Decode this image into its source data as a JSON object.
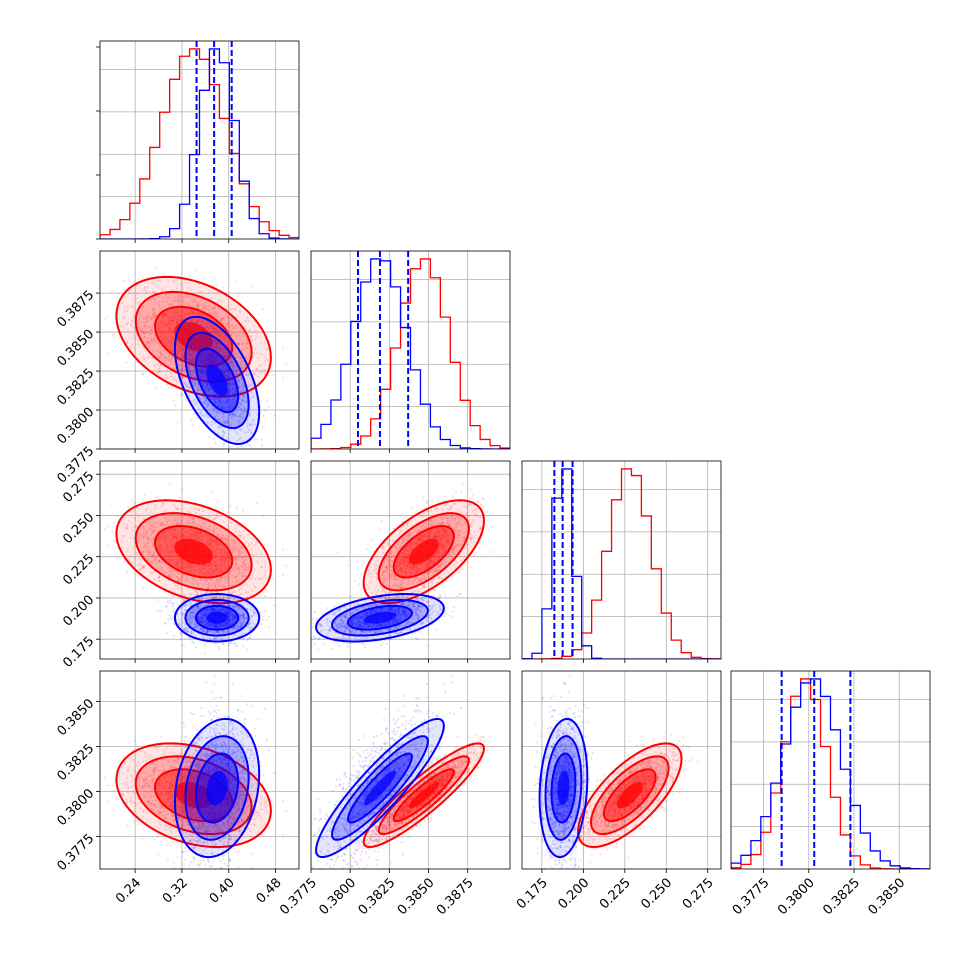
{
  "colors": {
    "red": "#ff0000",
    "blue": "#0000ff",
    "grid": "#b0b0b0",
    "frame": "#000000"
  },
  "chart_data": {
    "type": "corner",
    "grid": true,
    "series": [
      {
        "color": "#ff0000",
        "mean": [
          0.34,
          0.3847,
          0.228,
          0.3798
        ],
        "sd": [
          0.055,
          0.0016,
          0.013,
          0.0012
        ],
        "corr": [
          [
            1,
            -0.35,
            -0.35,
            -0.3
          ],
          [
            -0.35,
            1,
            0.6,
            0.9
          ],
          [
            -0.35,
            0.6,
            1,
            0.7
          ],
          [
            -0.3,
            0.9,
            0.7,
            1
          ]
        ]
      },
      {
        "color": "#0000ff",
        "mean": [
          0.38,
          0.3819,
          0.188,
          0.3802
        ],
        "sd": [
          0.03,
          0.0017,
          0.006,
          0.0016
        ],
        "corr": [
          [
            1,
            -0.5,
            0,
            0.2
          ],
          [
            -0.5,
            1,
            0.4,
            0.9
          ],
          [
            0,
            0.4,
            1,
            0.15
          ],
          [
            0.2,
            0.9,
            0.15,
            1
          ]
        ]
      }
    ],
    "quantiles": [
      [
        0.345,
        0.375,
        0.405
      ],
      [
        0.3805,
        0.3819,
        0.3837
      ],
      [
        0.1825,
        0.1875,
        0.1935
      ],
      [
        0.3785,
        0.3803,
        0.3823
      ]
    ],
    "params": [
      {
        "range": [
          0.18,
          0.52
        ],
        "ticks": [
          0.24,
          0.32,
          0.4,
          0.48
        ],
        "tick_labels": [
          "0.24",
          "0.32",
          "0.40",
          "0.48"
        ]
      },
      {
        "range": [
          0.3775,
          0.3902
        ],
        "ticks": [
          0.3775,
          0.38,
          0.3825,
          0.385,
          0.3875
        ],
        "tick_labels": [
          "0.3775",
          "0.3800",
          "0.3825",
          "0.3850",
          "0.3875"
        ]
      },
      {
        "range": [
          0.163,
          0.283
        ],
        "ticks": [
          0.175,
          0.2,
          0.225,
          0.25,
          0.275
        ],
        "tick_labels": [
          "0.175",
          "0.200",
          "0.225",
          "0.250",
          "0.275"
        ]
      },
      {
        "range": [
          0.3757,
          0.3867
        ],
        "ticks": [
          0.3775,
          0.38,
          0.3825,
          0.385
        ],
        "tick_labels": [
          "0.3775",
          "0.3800",
          "0.3825",
          "0.3850"
        ]
      }
    ]
  }
}
